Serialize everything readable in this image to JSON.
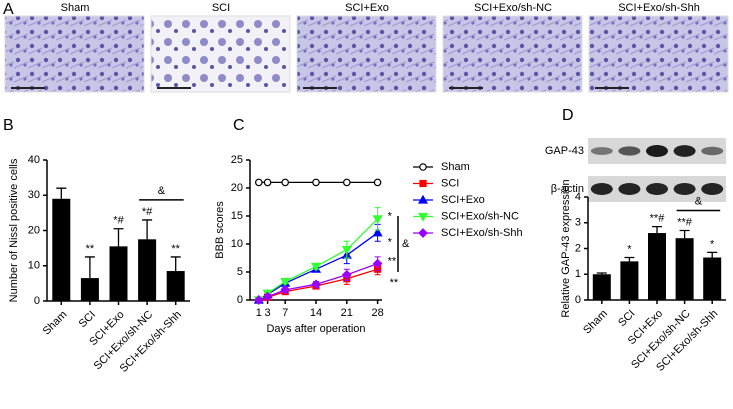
{
  "micrographs": {
    "label": "A",
    "titles": [
      "Sham",
      "SCI",
      "SCI+Exo",
      "SCI+Exo/sh-NC",
      "SCI+Exo/sh-Shh"
    ]
  },
  "chart_data": [
    {
      "type": "bar",
      "label": "B",
      "y_label": "Number of Nissl positive cells",
      "categories": [
        "Sham",
        "SCI",
        "SCI+Exo",
        "SCI+Exo/sh-NC",
        "SCI+Exo/sh-Shh"
      ],
      "values": [
        29,
        6.5,
        15.5,
        17.5,
        8.5
      ],
      "errors": [
        3,
        6,
        5,
        5.5,
        4
      ],
      "annotations": [
        null,
        "**",
        "*#",
        "*#",
        "**"
      ],
      "bracket": {
        "label": "&",
        "from": "SCI+Exo/sh-NC",
        "to": "SCI+Exo/sh-Shh"
      },
      "color": "#000000",
      "ylim": [
        0,
        40
      ],
      "yticks": [
        0,
        10,
        20,
        30,
        40
      ]
    },
    {
      "type": "line",
      "label": "C",
      "x_label": "Days  after operation",
      "y_label": "BBB scores",
      "x": [
        1,
        3,
        7,
        14,
        21,
        28
      ],
      "series": [
        {
          "name": "Sham",
          "color": "#000000",
          "marker": "circle",
          "values": [
            21,
            21,
            21,
            21,
            21,
            21
          ],
          "errors": [
            0,
            0,
            0,
            0,
            0,
            0
          ],
          "annotation": null
        },
        {
          "name": "SCI",
          "color": "#ff0000",
          "marker": "square",
          "values": [
            0,
            0.5,
            1.5,
            2.5,
            3.8,
            5.5
          ],
          "errors": [
            0.2,
            0.3,
            0.4,
            0.5,
            1,
            1
          ],
          "annotation": "**"
        },
        {
          "name": "SCI+Exo",
          "color": "#0000ff",
          "marker": "triangle",
          "values": [
            0,
            1,
            3,
            5.5,
            8,
            12
          ],
          "errors": [
            0.2,
            0.3,
            0.4,
            0.5,
            1.5,
            1.5
          ],
          "annotation": "*"
        },
        {
          "name": "SCI+Exo/sh-NC",
          "color": "#33ff33",
          "marker": "triangle-down",
          "values": [
            0,
            1.2,
            3.3,
            6,
            9,
            14.5
          ],
          "errors": [
            0.2,
            0.3,
            0.4,
            0.5,
            1.5,
            2
          ],
          "annotation": "*"
        },
        {
          "name": "SCI+Exo/sh-Shh",
          "color": "#9900ff",
          "marker": "diamond",
          "values": [
            0,
            0.6,
            1.8,
            2.8,
            4.5,
            6.5
          ],
          "errors": [
            0.2,
            0.3,
            0.4,
            0.5,
            1,
            1.2
          ],
          "annotation": "**"
        }
      ],
      "bracket": {
        "label": "&"
      },
      "xlim": [
        -1,
        29
      ],
      "xticks": [
        1,
        3,
        7,
        14,
        21,
        28
      ],
      "ylim": [
        0,
        25
      ],
      "yticks": [
        0,
        5,
        10,
        15,
        20,
        25
      ]
    },
    {
      "type": "bar",
      "label": "D",
      "y_label": "Relative GAP-43 expression",
      "blot_labels": [
        "GAP-43",
        "β-actin"
      ],
      "categories": [
        "Sham",
        "SCI",
        "SCI+Exo",
        "SCI+Exo/sh-NC",
        "SCI+Exo/sh-Shh"
      ],
      "values": [
        1.0,
        1.5,
        2.6,
        2.4,
        1.65
      ],
      "errors": [
        0.05,
        0.15,
        0.25,
        0.3,
        0.2
      ],
      "annotations": [
        null,
        "*",
        "**#",
        "**#",
        "*"
      ],
      "bracket": {
        "label": "&",
        "from": "SCI+Exo/sh-NC",
        "to": "SCI+Exo/sh-Shh"
      },
      "color": "#000000",
      "ylim": [
        0,
        4
      ],
      "yticks": [
        0,
        1,
        2,
        3,
        4
      ]
    }
  ]
}
